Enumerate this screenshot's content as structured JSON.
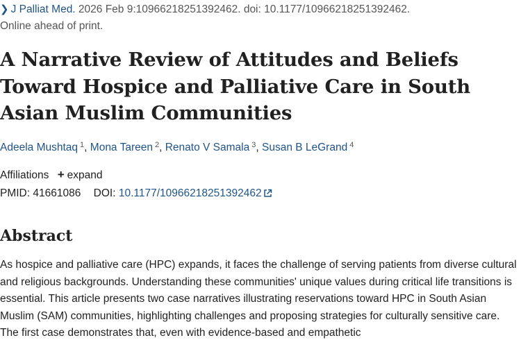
{
  "citation": {
    "journal": "J Palliat Med.",
    "details": " 2026 Feb 9:10966218251392462. doi: 10.1177/10966218251392462.",
    "status": "Online ahead of print."
  },
  "title": "A Narrative Review of Attitudes and Beliefs Toward Hospice and Palliative Care in South Asian Muslim Communities",
  "authors": [
    {
      "name": "Adeela Mushtaq",
      "aff": "1"
    },
    {
      "name": "Mona Tareen",
      "aff": "2"
    },
    {
      "name": "Renato V Samala",
      "aff": "3"
    },
    {
      "name": "Susan B LeGrand",
      "aff": "4"
    }
  ],
  "affiliations": {
    "label": "Affiliations",
    "expand_label": "expand"
  },
  "ids": {
    "pmid_label": "PMID:",
    "pmid": "41661086",
    "doi_label": "DOI:",
    "doi": "10.1177/10966218251392462"
  },
  "abstract": {
    "heading": "Abstract",
    "text": "As hospice and palliative care (HPC) expands, it faces the challenge of serving patients from diverse cultural and religious backgrounds. Understanding these communities' unique values during critical life transitions is essential. This article presents two case narratives illustrating reservations toward HPC in South Asian Muslim (SAM) communities, highlighting challenges and proposing strategies for culturally sensitive care. The first case demonstrates that, even with evidence-based and empathetic"
  },
  "colors": {
    "link": "#20558a",
    "text": "#212121",
    "muted": "#555555"
  }
}
